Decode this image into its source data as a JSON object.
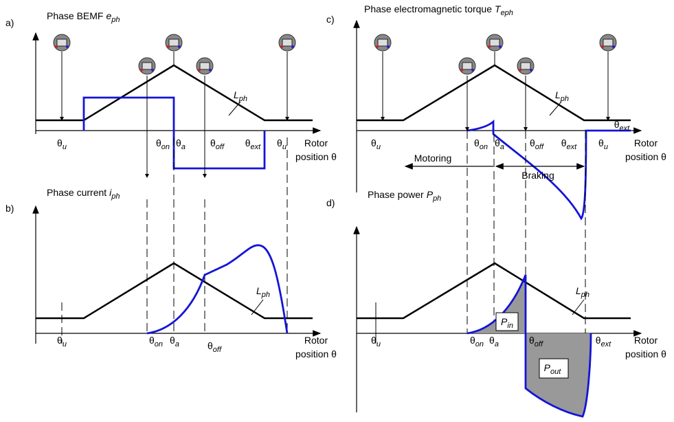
{
  "panels": [
    {
      "label": "a)",
      "title": {
        "text": "Phase BEMF",
        "symbol": "e",
        "sub": "ph"
      },
      "angles": [
        {
          "symbol": "θ",
          "sub": "u"
        },
        {
          "symbol": "θ",
          "sub": "on"
        },
        {
          "symbol": "θ",
          "sub": "a"
        },
        {
          "symbol": "θ",
          "sub": "off"
        },
        {
          "symbol": "θ",
          "sub": "ext"
        },
        {
          "symbol": "θ",
          "sub": "u"
        }
      ],
      "inductance": {
        "symbol": "L",
        "sub": "ph"
      },
      "axis_label": [
        "Rotor",
        "position θ"
      ]
    },
    {
      "label": "b)",
      "title": {
        "text": "Phase current",
        "symbol": "i",
        "sub": "ph"
      },
      "angles": [
        {
          "symbol": "θ",
          "sub": "u"
        },
        {
          "symbol": "θ",
          "sub": "on"
        },
        {
          "symbol": "θ",
          "sub": "a"
        },
        {
          "symbol": "θ",
          "sub": "off"
        }
      ],
      "inductance": {
        "symbol": "L",
        "sub": "ph"
      },
      "axis_label": [
        "Rotor",
        "position θ"
      ]
    },
    {
      "label": "c)",
      "title": {
        "text": "Phase electromagnetic torque",
        "symbol": "T",
        "sub": "eph"
      },
      "angles": [
        {
          "symbol": "θ",
          "sub": "u"
        },
        {
          "symbol": "θ",
          "sub": "on"
        },
        {
          "symbol": "θ",
          "sub": "a"
        },
        {
          "symbol": "θ",
          "sub": "off"
        },
        {
          "symbol": "θ",
          "sub": "ext"
        },
        {
          "symbol": "θ",
          "sub": "u"
        },
        {
          "symbol": "θ",
          "sub": "ext"
        }
      ],
      "inductance": {
        "symbol": "L",
        "sub": "ph"
      },
      "axis_label": [
        "Rotor",
        "position θ"
      ],
      "regions": [
        "Motoring",
        "Braking"
      ]
    },
    {
      "label": "d)",
      "title": {
        "text": "Phase power",
        "symbol": "P",
        "sub": "ph"
      },
      "angles": [
        {
          "symbol": "θ",
          "sub": "u"
        },
        {
          "symbol": "θ",
          "sub": "on"
        },
        {
          "symbol": "θ",
          "sub": "a"
        },
        {
          "symbol": "θ",
          "sub": "off"
        },
        {
          "symbol": "θ",
          "sub": "ext"
        }
      ],
      "inductance": {
        "symbol": "L",
        "sub": "ph"
      },
      "axis_label": [
        "Rotor",
        "position θ"
      ],
      "areas": [
        {
          "symbol": "P",
          "sub": "in"
        },
        {
          "symbol": "P",
          "sub": "out"
        }
      ]
    }
  ]
}
